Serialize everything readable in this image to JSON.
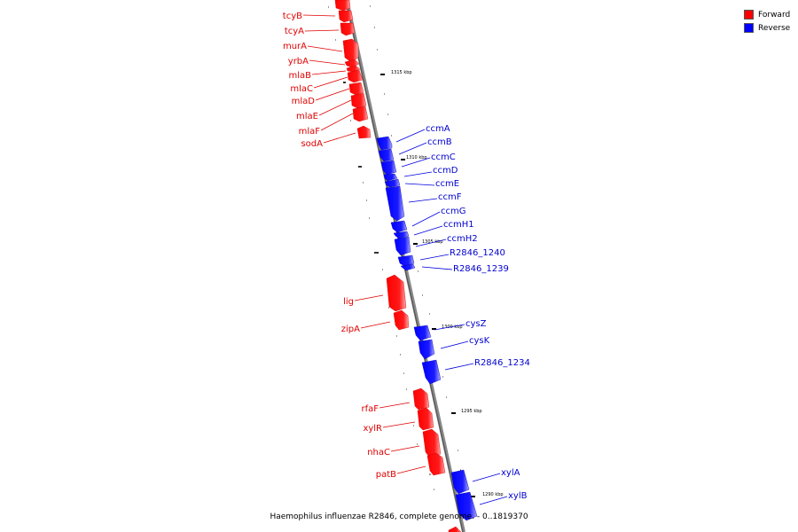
{
  "legend": {
    "forward_label": "Forward",
    "reverse_label": "Reverse",
    "forward_color": "#ff0000",
    "reverse_color": "#0000ff"
  },
  "caption": "Haemophilus influenzae R2846, complete genome. - 0..1819370",
  "ticks": [
    "1315 kbp",
    "1310 kbp",
    "1305 kbp",
    "1300 kbp",
    "1295 kbp",
    "1290 kbp"
  ],
  "forward_genes": [
    "tcyB",
    "tcyA",
    "murA",
    "yrbA",
    "mlaB",
    "mlaC",
    "mlaD",
    "mlaE",
    "mlaF",
    "sodA",
    "lig",
    "zipA",
    "rfaF",
    "xylR",
    "nhaC",
    "patB"
  ],
  "reverse_genes": [
    "ccmA",
    "ccmB",
    "ccmC",
    "ccmD",
    "ccmE",
    "ccmF",
    "ccmG",
    "ccmH1",
    "ccmH2",
    "R2846_1240",
    "R2846_1239",
    "cysZ",
    "cysK",
    "R2846_1234",
    "xylA",
    "xylB"
  ]
}
